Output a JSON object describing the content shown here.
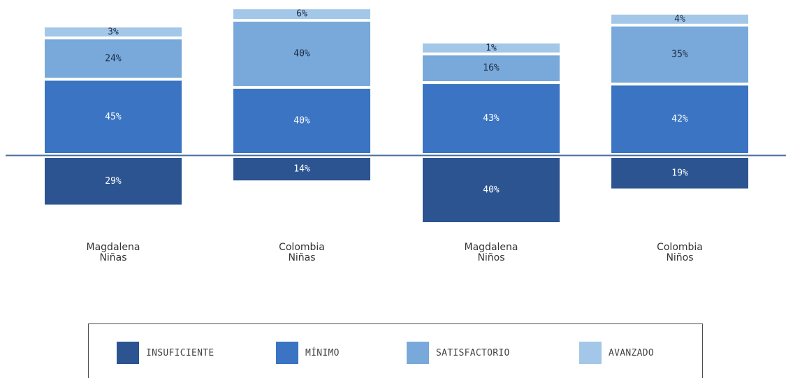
{
  "chart_data": {
    "type": "bar",
    "stacked": "diverging",
    "baseline": "between INSUFICIENTE (below) and MÍNIMO (above)",
    "categories": [
      [
        "Magdalena",
        "Niñas"
      ],
      [
        "Colombia",
        "Niñas"
      ],
      [
        "Magdalena",
        "Niños"
      ],
      [
        "Colombia",
        "Niños"
      ]
    ],
    "series": [
      {
        "name": "INSUFICIENTE",
        "color": "#2c5490",
        "position": "below",
        "values": [
          29,
          14,
          40,
          19
        ]
      },
      {
        "name": "MÍNIMO",
        "color": "#3a74c2",
        "position": "above",
        "values": [
          45,
          40,
          43,
          42
        ]
      },
      {
        "name": "SATISFACTORIO",
        "color": "#78a9da",
        "position": "above",
        "values": [
          24,
          40,
          16,
          35
        ]
      },
      {
        "name": "AVANZADO",
        "color": "#a3c7e8",
        "position": "above",
        "values": [
          3,
          6,
          1,
          4
        ]
      }
    ],
    "value_suffix": "%",
    "legend_placement": "bottom",
    "grid": false
  }
}
